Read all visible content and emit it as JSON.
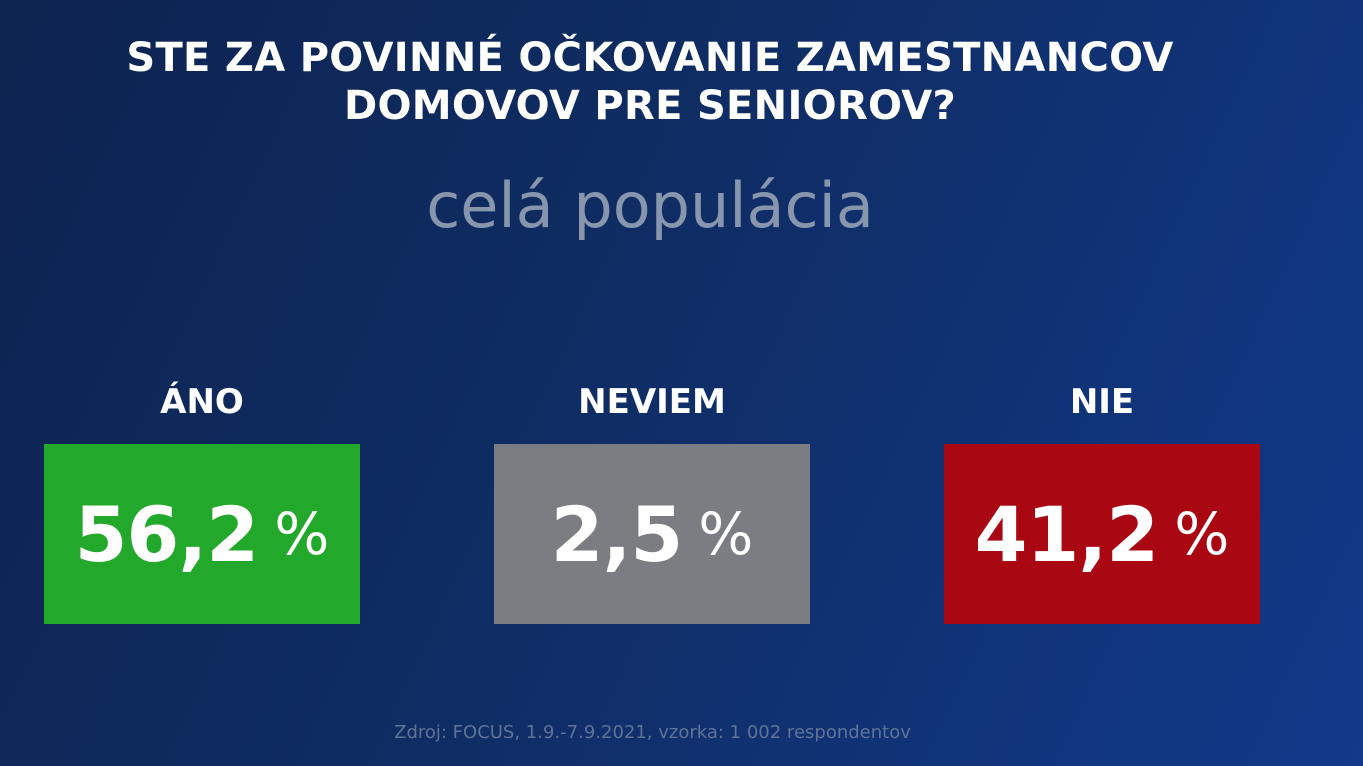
{
  "chart_data": {
    "type": "table",
    "title_lines": [
      "STE ZA POVINNÉ OČKOVANIE ZAMESTNANCOV",
      "DOMOVOV PRE SENIOROV?"
    ],
    "subtitle": "celá populácia",
    "categories": [
      "ÁNO",
      "NEVIEM",
      "NIE"
    ],
    "values": [
      56.2,
      2.5,
      41.2
    ],
    "value_labels": [
      "56,2",
      "2,5",
      "41,2"
    ],
    "unit": "%",
    "colors": [
      "#22a82a",
      "#7b7d82",
      "#a90812"
    ]
  },
  "source": "Zdroj: FOCUS, 1.9.-7.9.2021, vzorka: 1 002 respondentov"
}
